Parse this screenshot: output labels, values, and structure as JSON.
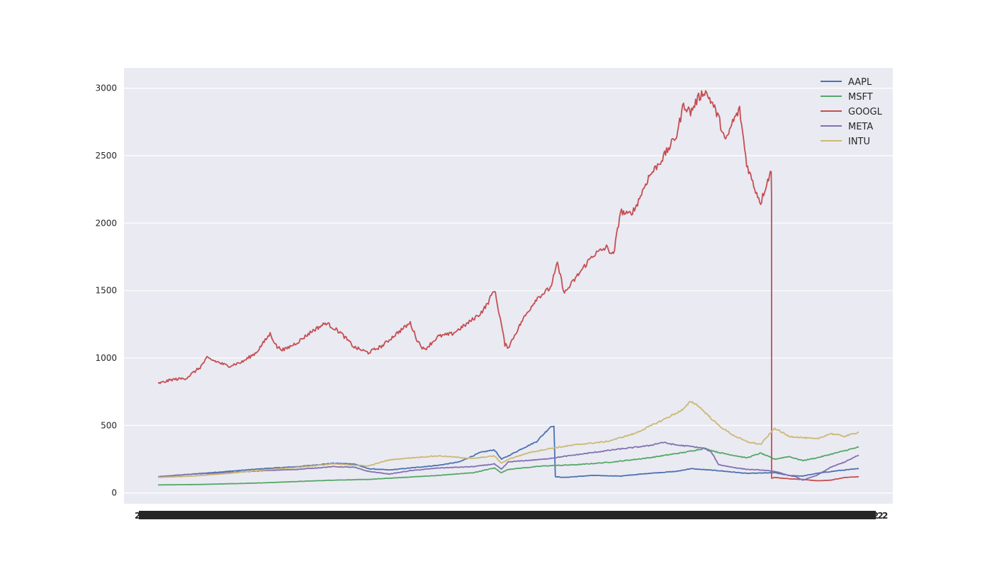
{
  "chart_data": {
    "type": "line",
    "title": "",
    "xlabel": "",
    "ylabel": "",
    "ylim": [
      -80,
      3150
    ],
    "yticks": [
      0,
      500,
      1000,
      1500,
      2000,
      2500,
      3000
    ],
    "x_tick_labels_note": "dense, overlapping and unreadable date labels",
    "grid": true,
    "legend_position": "top-right",
    "colors": {
      "AAPL": "#4c72b0",
      "MSFT": "#55a868",
      "GOOGL": "#c44e52",
      "META": "#8172b2",
      "INTU": "#ccb974",
      "plot_bg": "#eaeaf2",
      "grid": "#ffffff"
    },
    "x_domain_fraction": [
      0,
      1
    ],
    "series": [
      {
        "name": "AAPL",
        "points": [
          [
            0.0,
            120
          ],
          [
            0.05,
            140
          ],
          [
            0.1,
            160
          ],
          [
            0.15,
            180
          ],
          [
            0.2,
            195
          ],
          [
            0.25,
            220
          ],
          [
            0.28,
            215
          ],
          [
            0.3,
            180
          ],
          [
            0.33,
            170
          ],
          [
            0.36,
            185
          ],
          [
            0.4,
            205
          ],
          [
            0.43,
            230
          ],
          [
            0.46,
            300
          ],
          [
            0.48,
            320
          ],
          [
            0.49,
            250
          ],
          [
            0.5,
            275
          ],
          [
            0.52,
            330
          ],
          [
            0.54,
            380
          ],
          [
            0.56,
            490
          ],
          [
            0.565,
            500
          ],
          [
            0.567,
            120
          ],
          [
            0.58,
            115
          ],
          [
            0.62,
            130
          ],
          [
            0.66,
            125
          ],
          [
            0.7,
            145
          ],
          [
            0.74,
            160
          ],
          [
            0.76,
            180
          ],
          [
            0.8,
            165
          ],
          [
            0.84,
            145
          ],
          [
            0.88,
            150
          ],
          [
            0.9,
            130
          ],
          [
            0.92,
            125
          ],
          [
            0.94,
            145
          ],
          [
            0.97,
            165
          ],
          [
            1.0,
            180
          ]
        ]
      },
      {
        "name": "MSFT",
        "points": [
          [
            0.0,
            60
          ],
          [
            0.05,
            62
          ],
          [
            0.1,
            68
          ],
          [
            0.15,
            75
          ],
          [
            0.2,
            85
          ],
          [
            0.25,
            95
          ],
          [
            0.3,
            100
          ],
          [
            0.35,
            115
          ],
          [
            0.4,
            130
          ],
          [
            0.45,
            150
          ],
          [
            0.48,
            185
          ],
          [
            0.49,
            150
          ],
          [
            0.5,
            175
          ],
          [
            0.55,
            200
          ],
          [
            0.6,
            210
          ],
          [
            0.65,
            230
          ],
          [
            0.7,
            260
          ],
          [
            0.75,
            300
          ],
          [
            0.78,
            330
          ],
          [
            0.8,
            300
          ],
          [
            0.82,
            280
          ],
          [
            0.84,
            260
          ],
          [
            0.86,
            295
          ],
          [
            0.88,
            250
          ],
          [
            0.9,
            270
          ],
          [
            0.92,
            240
          ],
          [
            0.94,
            260
          ],
          [
            0.97,
            300
          ],
          [
            1.0,
            340
          ]
        ]
      },
      {
        "name": "GOOGL",
        "points": [
          [
            0.0,
            810
          ],
          [
            0.02,
            840
          ],
          [
            0.04,
            850
          ],
          [
            0.06,
            930
          ],
          [
            0.07,
            1000
          ],
          [
            0.09,
            960
          ],
          [
            0.1,
            940
          ],
          [
            0.12,
            970
          ],
          [
            0.14,
            1040
          ],
          [
            0.16,
            1180
          ],
          [
            0.17,
            1080
          ],
          [
            0.18,
            1060
          ],
          [
            0.2,
            1120
          ],
          [
            0.22,
            1200
          ],
          [
            0.24,
            1260
          ],
          [
            0.26,
            1190
          ],
          [
            0.28,
            1080
          ],
          [
            0.3,
            1040
          ],
          [
            0.32,
            1090
          ],
          [
            0.34,
            1180
          ],
          [
            0.36,
            1260
          ],
          [
            0.37,
            1130
          ],
          [
            0.38,
            1060
          ],
          [
            0.4,
            1160
          ],
          [
            0.42,
            1180
          ],
          [
            0.44,
            1250
          ],
          [
            0.46,
            1330
          ],
          [
            0.47,
            1400
          ],
          [
            0.48,
            1510
          ],
          [
            0.49,
            1250
          ],
          [
            0.495,
            1100
          ],
          [
            0.5,
            1080
          ],
          [
            0.52,
            1280
          ],
          [
            0.54,
            1440
          ],
          [
            0.56,
            1520
          ],
          [
            0.57,
            1700
          ],
          [
            0.58,
            1480
          ],
          [
            0.6,
            1620
          ],
          [
            0.62,
            1760
          ],
          [
            0.64,
            1820
          ],
          [
            0.65,
            1760
          ],
          [
            0.66,
            2090
          ],
          [
            0.67,
            2060
          ],
          [
            0.68,
            2100
          ],
          [
            0.7,
            2340
          ],
          [
            0.72,
            2480
          ],
          [
            0.74,
            2650
          ],
          [
            0.75,
            2880
          ],
          [
            0.76,
            2820
          ],
          [
            0.77,
            2920
          ],
          [
            0.78,
            2980
          ],
          [
            0.79,
            2900
          ],
          [
            0.8,
            2780
          ],
          [
            0.81,
            2600
          ],
          [
            0.82,
            2750
          ],
          [
            0.83,
            2840
          ],
          [
            0.84,
            2440
          ],
          [
            0.85,
            2280
          ],
          [
            0.86,
            2150
          ],
          [
            0.87,
            2320
          ],
          [
            0.875,
            2380
          ],
          [
            0.8755,
            2200
          ],
          [
            0.8756,
            110
          ],
          [
            0.88,
            115
          ],
          [
            0.9,
            105
          ],
          [
            0.92,
            100
          ],
          [
            0.94,
            90
          ],
          [
            0.96,
            95
          ],
          [
            0.98,
            115
          ],
          [
            1.0,
            120
          ]
        ]
      },
      {
        "name": "META",
        "points": [
          [
            0.0,
            120
          ],
          [
            0.05,
            140
          ],
          [
            0.1,
            150
          ],
          [
            0.15,
            165
          ],
          [
            0.2,
            175
          ],
          [
            0.25,
            195
          ],
          [
            0.28,
            190
          ],
          [
            0.3,
            160
          ],
          [
            0.33,
            140
          ],
          [
            0.36,
            165
          ],
          [
            0.4,
            185
          ],
          [
            0.45,
            195
          ],
          [
            0.48,
            215
          ],
          [
            0.49,
            175
          ],
          [
            0.5,
            230
          ],
          [
            0.55,
            250
          ],
          [
            0.6,
            285
          ],
          [
            0.65,
            320
          ],
          [
            0.7,
            350
          ],
          [
            0.72,
            375
          ],
          [
            0.74,
            355
          ],
          [
            0.76,
            345
          ],
          [
            0.78,
            330
          ],
          [
            0.79,
            300
          ],
          [
            0.8,
            210
          ],
          [
            0.82,
            190
          ],
          [
            0.84,
            175
          ],
          [
            0.86,
            170
          ],
          [
            0.88,
            160
          ],
          [
            0.9,
            130
          ],
          [
            0.91,
            120
          ],
          [
            0.92,
            95
          ],
          [
            0.94,
            130
          ],
          [
            0.96,
            190
          ],
          [
            0.98,
            230
          ],
          [
            1.0,
            280
          ]
        ]
      },
      {
        "name": "INTU",
        "points": [
          [
            0.0,
            115
          ],
          [
            0.05,
            125
          ],
          [
            0.1,
            145
          ],
          [
            0.15,
            170
          ],
          [
            0.2,
            190
          ],
          [
            0.25,
            215
          ],
          [
            0.3,
            200
          ],
          [
            0.33,
            245
          ],
          [
            0.36,
            260
          ],
          [
            0.4,
            275
          ],
          [
            0.45,
            255
          ],
          [
            0.48,
            275
          ],
          [
            0.49,
            220
          ],
          [
            0.5,
            250
          ],
          [
            0.53,
            300
          ],
          [
            0.56,
            330
          ],
          [
            0.6,
            360
          ],
          [
            0.64,
            380
          ],
          [
            0.68,
            440
          ],
          [
            0.72,
            540
          ],
          [
            0.75,
            620
          ],
          [
            0.76,
            680
          ],
          [
            0.77,
            650
          ],
          [
            0.78,
            600
          ],
          [
            0.8,
            500
          ],
          [
            0.82,
            430
          ],
          [
            0.84,
            380
          ],
          [
            0.86,
            360
          ],
          [
            0.88,
            480
          ],
          [
            0.9,
            420
          ],
          [
            0.92,
            410
          ],
          [
            0.94,
            400
          ],
          [
            0.96,
            440
          ],
          [
            0.98,
            420
          ],
          [
            1.0,
            450
          ]
        ]
      }
    ]
  }
}
